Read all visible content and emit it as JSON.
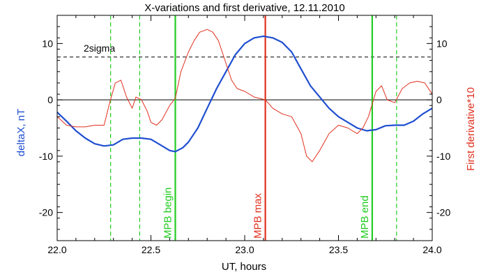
{
  "chart_data": {
    "type": "line",
    "title": "X-variations and first derivative, 12.11.2010",
    "xlabel": "UT, hours",
    "ylabel_left": "deltaX, nT",
    "ylabel_right": "First derivative*10",
    "xlim": [
      22.0,
      24.0
    ],
    "ylim": [
      -25,
      15
    ],
    "x_ticks": [
      22.0,
      22.5,
      23.0,
      23.5,
      24.0
    ],
    "x_tick_labels": [
      "22.0",
      "22.5",
      "23.0",
      "23.5",
      "24.0"
    ],
    "y_ticks": [
      -20,
      -10,
      0,
      10
    ],
    "y_tick_labels": [
      "-20",
      "-10",
      "0",
      "10"
    ],
    "grid": false,
    "colors": {
      "deltaX": "#1f4fd1",
      "derivative": "#e0301e",
      "mpb": "#22cc22",
      "mpb_max": "#e0301e",
      "zero_line": "#000000",
      "sigma_line": "#000000"
    },
    "reference_lines": {
      "zero": 0,
      "sigma": 7.6,
      "sigma_label": "2sigma"
    },
    "vertical_markers": [
      {
        "x": 22.285,
        "style": "dashed",
        "color": "#22cc22"
      },
      {
        "x": 22.44,
        "style": "dashed",
        "color": "#22cc22"
      },
      {
        "x": 22.63,
        "style": "solid",
        "color": "#22cc22",
        "label": "MPB begin"
      },
      {
        "x": 23.11,
        "style": "solid",
        "color": "#e0301e",
        "label": "MPB max"
      },
      {
        "x": 23.68,
        "style": "solid",
        "color": "#22cc22",
        "label": "MPB end"
      },
      {
        "x": 23.81,
        "style": "dashed",
        "color": "#22cc22"
      }
    ],
    "series": [
      {
        "key": "deltaX",
        "x": [
          22.0,
          22.05,
          22.1,
          22.15,
          22.2,
          22.25,
          22.3,
          22.35,
          22.4,
          22.45,
          22.5,
          22.55,
          22.6,
          22.63,
          22.67,
          22.7,
          22.75,
          22.8,
          22.85,
          22.9,
          22.95,
          23.0,
          23.05,
          23.1,
          23.15,
          23.2,
          23.25,
          23.3,
          23.35,
          23.4,
          23.45,
          23.5,
          23.55,
          23.6,
          23.65,
          23.7,
          23.75,
          23.8,
          23.85,
          23.9,
          23.95,
          24.0
        ],
        "values": [
          -2.2,
          -3.8,
          -5.5,
          -6.8,
          -7.8,
          -8.2,
          -8.0,
          -7.0,
          -6.8,
          -6.8,
          -7.0,
          -8.0,
          -9.0,
          -9.2,
          -8.5,
          -7.5,
          -5.0,
          -1.5,
          2.0,
          5.0,
          8.0,
          10.0,
          11.0,
          11.3,
          11.0,
          10.2,
          8.5,
          5.5,
          2.5,
          0.5,
          -1.5,
          -3.0,
          -4.0,
          -5.0,
          -5.5,
          -5.3,
          -4.6,
          -4.5,
          -4.5,
          -3.8,
          -2.5,
          -1.5
        ]
      },
      {
        "key": "derivative",
        "x": [
          22.0,
          22.05,
          22.1,
          22.15,
          22.2,
          22.25,
          22.28,
          22.31,
          22.34,
          22.37,
          22.4,
          22.42,
          22.45,
          22.48,
          22.5,
          22.53,
          22.56,
          22.6,
          22.63,
          22.66,
          22.7,
          22.73,
          22.76,
          22.8,
          22.83,
          22.86,
          22.9,
          22.93,
          22.96,
          23.0,
          23.05,
          23.11,
          23.15,
          23.2,
          23.25,
          23.3,
          23.33,
          23.36,
          23.4,
          23.45,
          23.5,
          23.55,
          23.6,
          23.63,
          23.66,
          23.7,
          23.73,
          23.76,
          23.8,
          23.84,
          23.88,
          23.92,
          23.96,
          24.0
        ],
        "values": [
          -3.0,
          -4.5,
          -4.8,
          -4.8,
          -4.5,
          -4.5,
          -0.5,
          3.0,
          3.5,
          0.5,
          -1.5,
          0.5,
          0.0,
          -2.0,
          -4.0,
          -4.5,
          -3.5,
          -1.0,
          0.3,
          5.0,
          8.5,
          10.5,
          12.0,
          12.5,
          12.0,
          10.5,
          6.5,
          3.5,
          2.0,
          1.5,
          0.5,
          0.0,
          -1.5,
          -2.5,
          -3.0,
          -6.0,
          -10.0,
          -11.0,
          -9.0,
          -6.0,
          -4.5,
          -5.0,
          -6.0,
          -5.0,
          -3.0,
          1.5,
          2.5,
          0.0,
          -0.5,
          2.0,
          3.0,
          3.3,
          3.0,
          1.0
        ]
      }
    ]
  }
}
